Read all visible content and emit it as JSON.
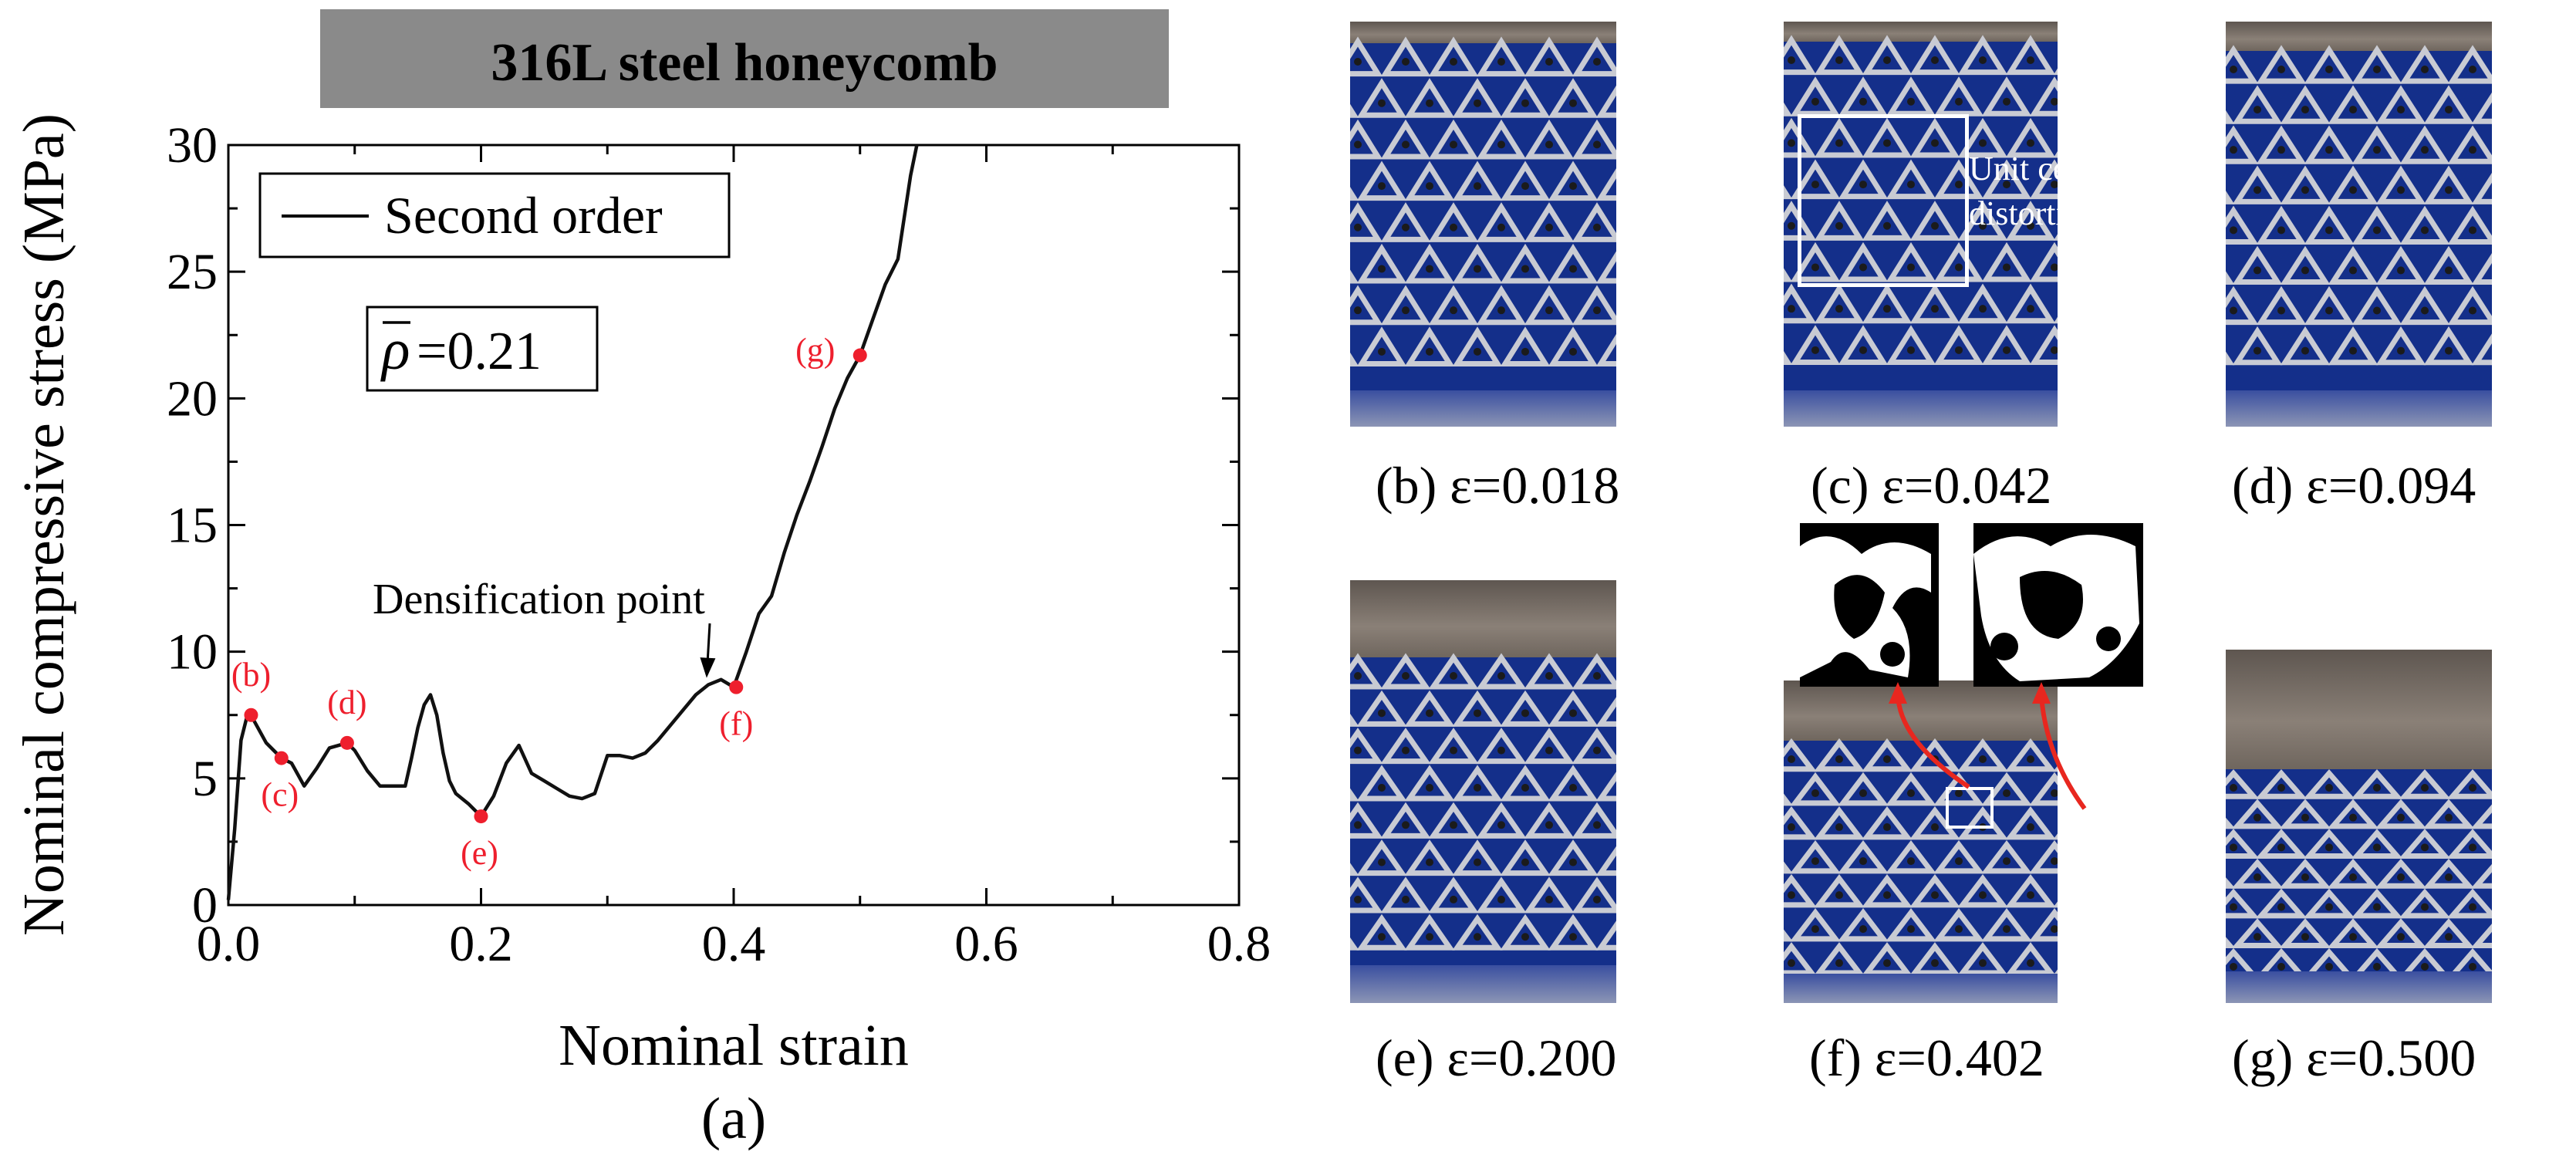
{
  "figure": {
    "panel_a_label": "(a)",
    "photos": [
      {
        "id": "b",
        "caption": "(b) ε=0.018"
      },
      {
        "id": "c",
        "caption": "(c) ε=0.042",
        "annotation": "Unit cell distortion",
        "annotation_line1": "Unit cell",
        "annotation_line2": "distortion"
      },
      {
        "id": "d",
        "caption": "(d) ε=0.094"
      },
      {
        "id": "e",
        "caption": "(e) ε=0.200"
      },
      {
        "id": "f",
        "caption": "(f) ε=0.402"
      },
      {
        "id": "g",
        "caption": "(g) ε=0.500"
      }
    ]
  },
  "chart_data": {
    "type": "line",
    "title": "316L steel honeycomb",
    "xlabel": "Nominal strain",
    "ylabel": "Nominal compressive stress (MPa)",
    "xlim": [
      0.0,
      0.8
    ],
    "ylim": [
      0,
      30
    ],
    "xticks": [
      0.0,
      0.2,
      0.4,
      0.6,
      0.8
    ],
    "xtick_labels": [
      "0.0",
      "0.2",
      "0.4",
      "0.6",
      "0.8"
    ],
    "yticks": [
      0,
      5,
      10,
      15,
      20,
      25,
      30
    ],
    "ytick_labels": [
      "0",
      "5",
      "10",
      "15",
      "20",
      "25",
      "30"
    ],
    "legend": {
      "placement": "top-left",
      "entries": [
        "Second order"
      ]
    },
    "density_label": "=0.21",
    "density_symbol": "ρ",
    "annotation": {
      "text": "Densification point",
      "points_to": "f"
    },
    "series": [
      {
        "name": "Second order",
        "x": [
          0.0,
          0.005,
          0.01,
          0.015,
          0.02,
          0.03,
          0.042,
          0.05,
          0.06,
          0.07,
          0.08,
          0.094,
          0.1,
          0.11,
          0.12,
          0.13,
          0.14,
          0.145,
          0.15,
          0.155,
          0.16,
          0.165,
          0.17,
          0.175,
          0.18,
          0.19,
          0.2,
          0.21,
          0.22,
          0.23,
          0.24,
          0.25,
          0.26,
          0.27,
          0.28,
          0.29,
          0.3,
          0.31,
          0.32,
          0.33,
          0.34,
          0.35,
          0.36,
          0.37,
          0.38,
          0.39,
          0.4,
          0.41,
          0.42,
          0.43,
          0.44,
          0.45,
          0.46,
          0.47,
          0.48,
          0.49,
          0.5,
          0.51,
          0.52,
          0.53,
          0.54,
          0.545
        ],
        "y": [
          0.2,
          3.0,
          6.5,
          7.5,
          7.3,
          6.4,
          5.8,
          5.6,
          4.7,
          5.4,
          6.2,
          6.4,
          6.1,
          5.3,
          4.7,
          4.7,
          4.7,
          5.8,
          7.0,
          7.9,
          8.3,
          7.5,
          6.0,
          4.9,
          4.4,
          4.0,
          3.5,
          4.3,
          5.6,
          6.3,
          5.2,
          4.9,
          4.6,
          4.3,
          4.2,
          4.4,
          5.9,
          5.9,
          5.8,
          6.0,
          6.5,
          7.1,
          7.7,
          8.3,
          8.7,
          8.9,
          8.6,
          10.0,
          11.5,
          12.2,
          13.9,
          15.4,
          16.7,
          18.1,
          19.6,
          20.8,
          21.7,
          23.1,
          24.5,
          25.5,
          28.8,
          30.0
        ]
      },
      {
        "name": "marked points",
        "labels": [
          "(b)",
          "(c)",
          "(d)",
          "(e)",
          "(f)",
          "(g)"
        ],
        "x": [
          0.018,
          0.042,
          0.094,
          0.2,
          0.402,
          0.5
        ],
        "y": [
          7.5,
          5.8,
          6.4,
          3.5,
          8.6,
          21.7
        ]
      }
    ]
  },
  "colors": {
    "curve": "#111111",
    "marker": "#ee1f2d",
    "title_bar": "#8a8a8a",
    "arrow": "#e8271f",
    "backdrop": "#142f8a"
  }
}
